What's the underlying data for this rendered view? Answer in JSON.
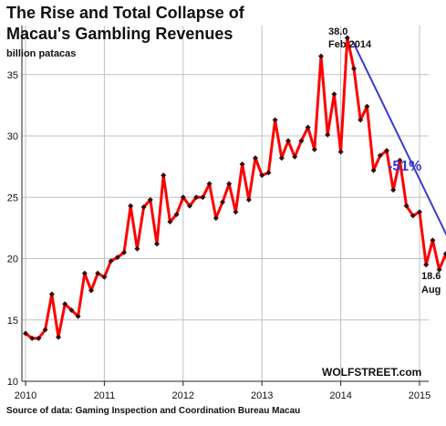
{
  "colors": {
    "series_line": "#ff0000",
    "marker": "#3a0a0a",
    "trend_arrow": "#3a3ad0",
    "grid": "#c0c0c0",
    "axis": "#222222"
  },
  "chart_data": {
    "type": "line",
    "title_lines": [
      "The Rise and Total Collapse of",
      "Macau's Gambling Revenues"
    ],
    "ylabel": "billion patacas",
    "xlabel": "",
    "ylim": [
      10,
      39
    ],
    "yticks": [
      10,
      15,
      20,
      25,
      30,
      35
    ],
    "xticks": [
      "2010",
      "2011",
      "2012",
      "2013",
      "2014",
      "2015"
    ],
    "grid": true,
    "x_start": "2010-01",
    "x_end": "2015-08",
    "series": [
      {
        "values": [
          13.9,
          13.5,
          13.5,
          14.2,
          17.1,
          13.6,
          16.3,
          15.8,
          15.3,
          18.8,
          17.4,
          18.8,
          18.5,
          19.8,
          20.1,
          20.5,
          24.3,
          20.8,
          24.2,
          24.8,
          21.2,
          26.8,
          23.0,
          23.6,
          25.0,
          24.3,
          25.0,
          25.0,
          26.1,
          23.3,
          24.6,
          26.1,
          23.8,
          27.7,
          24.8,
          28.2,
          26.8,
          27.0,
          31.3,
          28.2,
          29.6,
          28.3,
          29.6,
          30.7,
          28.9,
          36.5,
          30.1,
          33.4,
          28.7,
          38.0,
          35.5,
          31.3,
          32.4,
          27.2,
          28.4,
          28.8,
          25.6,
          28.0,
          24.3,
          23.5,
          23.8,
          19.5,
          21.5,
          19.1,
          20.4,
          17.9,
          19.1,
          18.6
        ]
      }
    ],
    "annotations": [
      {
        "line1": "38.0",
        "line2": "Feb 2014"
      },
      {
        "line1": "18.6",
        "line2": "Aug"
      }
    ],
    "change_label": "-51%",
    "brand": "WOLFSTREET.com",
    "source": "Source of data: Gaming Inspection and Coordination Bureau Macau"
  }
}
